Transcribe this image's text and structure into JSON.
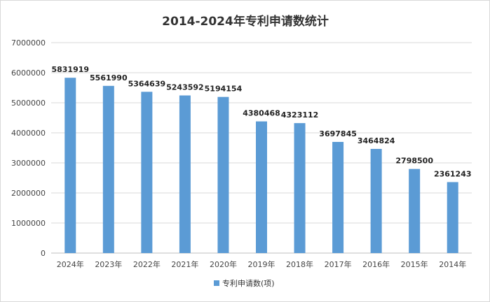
{
  "chart_data": {
    "type": "bar",
    "title": "2014-2024年专利申请数统计",
    "categories": [
      "2024年",
      "2023年",
      "2022年",
      "2021年",
      "2020年",
      "2019年",
      "2018年",
      "2017年",
      "2016年",
      "2015年",
      "2014年"
    ],
    "series": [
      {
        "name": "专利申请数(项)",
        "values": [
          5831919,
          5561990,
          5364639,
          5243592,
          5194154,
          4380468,
          4323112,
          3697845,
          3464824,
          2798500,
          2361243
        ]
      }
    ],
    "data_labels": [
      "5831919",
      "5561990",
      "5364639",
      "5243592",
      "5194154",
      "4380468",
      "4323112",
      "3697845",
      "3464824",
      "2798500",
      "2361243"
    ],
    "y_ticks": [
      "0",
      "1000000",
      "2000000",
      "3000000",
      "4000000",
      "5000000",
      "6000000",
      "7000000"
    ],
    "ylim": [
      0,
      7000000
    ],
    "grid": true,
    "legend_position": "bottom",
    "bar_color": "#5b9bd5"
  }
}
